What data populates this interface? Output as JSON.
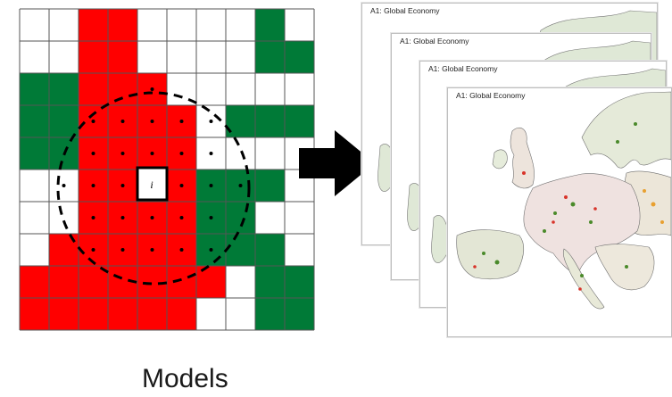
{
  "grid": {
    "rows": 10,
    "cols": 10,
    "legend_colors": {
      "0": "#ffffff",
      "1": "#ff0000",
      "2": "#007a37"
    },
    "cells": [
      [
        0,
        0,
        1,
        1,
        0,
        0,
        0,
        0,
        2,
        0
      ],
      [
        0,
        0,
        1,
        1,
        0,
        0,
        0,
        0,
        2,
        2
      ],
      [
        2,
        2,
        1,
        1,
        1,
        0,
        0,
        0,
        0,
        0
      ],
      [
        2,
        2,
        1,
        1,
        1,
        1,
        0,
        2,
        2,
        2
      ],
      [
        2,
        2,
        1,
        1,
        1,
        1,
        0,
        0,
        0,
        0
      ],
      [
        0,
        0,
        1,
        1,
        1,
        1,
        2,
        2,
        2,
        0
      ],
      [
        0,
        0,
        1,
        1,
        1,
        1,
        2,
        2,
        0,
        0
      ],
      [
        0,
        1,
        1,
        1,
        1,
        1,
        2,
        2,
        2,
        0
      ],
      [
        1,
        1,
        1,
        1,
        1,
        1,
        1,
        0,
        2,
        2
      ],
      [
        1,
        1,
        1,
        1,
        1,
        1,
        0,
        0,
        2,
        2
      ]
    ],
    "center_cell": {
      "row": 5,
      "col": 4,
      "label": "i"
    },
    "neighborhood_dots": [
      [
        2,
        4
      ],
      [
        3,
        2
      ],
      [
        3,
        3
      ],
      [
        3,
        4
      ],
      [
        3,
        5
      ],
      [
        3,
        6
      ],
      [
        4,
        2
      ],
      [
        4,
        3
      ],
      [
        4,
        4
      ],
      [
        4,
        5
      ],
      [
        4,
        6
      ],
      [
        5,
        1
      ],
      [
        5,
        2
      ],
      [
        5,
        3
      ],
      [
        5,
        5
      ],
      [
        5,
        6
      ],
      [
        5,
        7
      ],
      [
        6,
        2
      ],
      [
        6,
        3
      ],
      [
        6,
        4
      ],
      [
        6,
        5
      ],
      [
        6,
        6
      ],
      [
        7,
        2
      ],
      [
        7,
        3
      ],
      [
        7,
        4
      ],
      [
        7,
        5
      ],
      [
        7,
        6
      ]
    ]
  },
  "maps": {
    "cards": [
      {
        "title": "A1: Global Economy"
      },
      {
        "title": "A1: Global Economy"
      },
      {
        "title": "A1: Global Economy"
      },
      {
        "title": "A1: Global Economy"
      }
    ]
  },
  "caption": "Models"
}
